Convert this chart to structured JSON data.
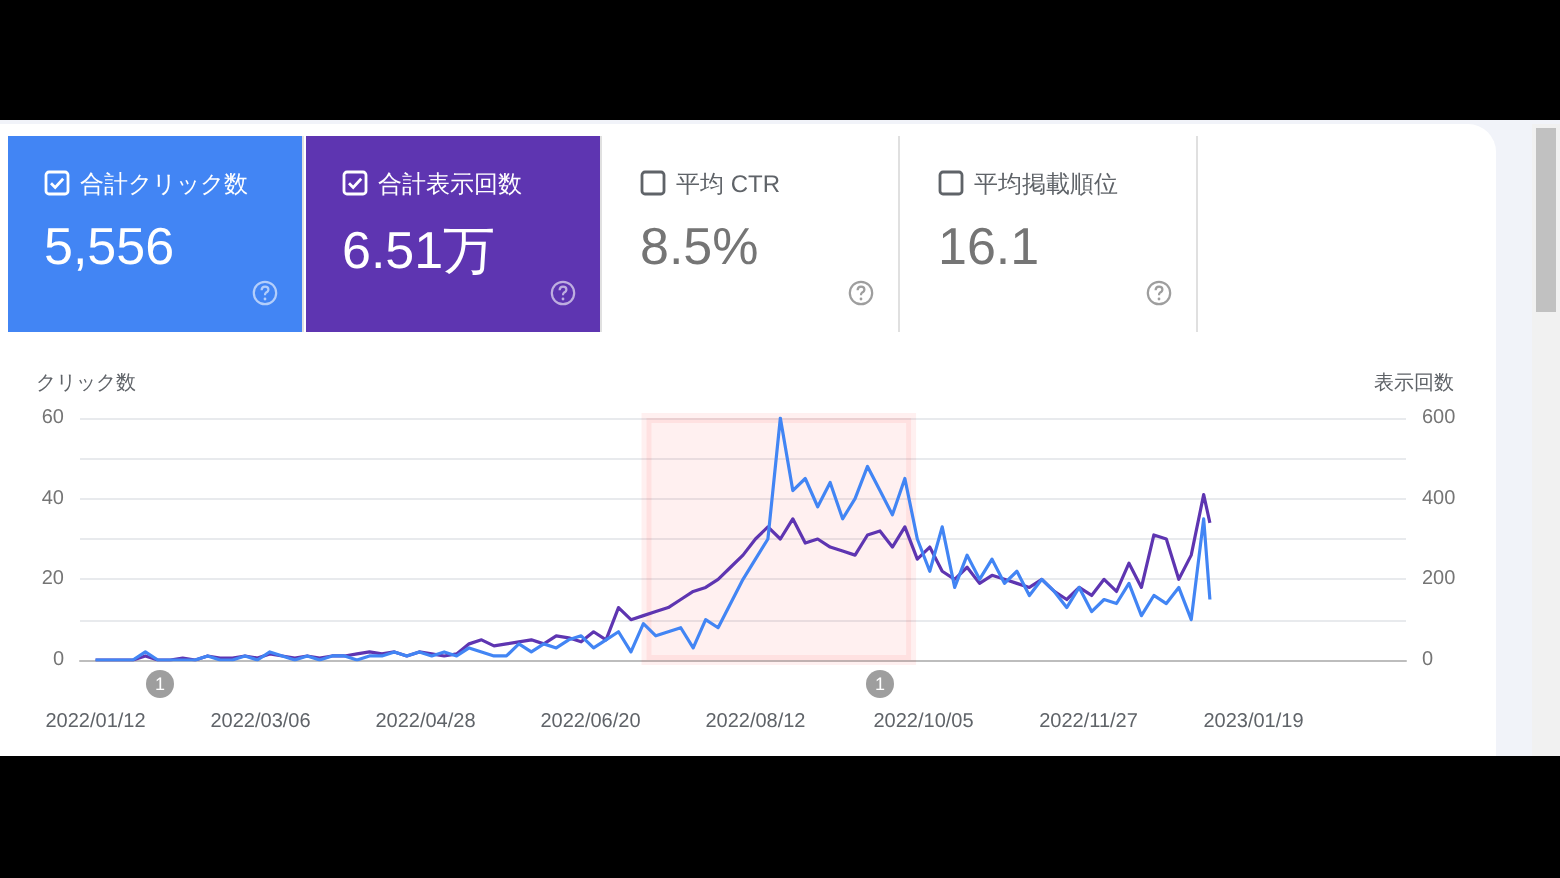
{
  "chart_data": [
    {
      "type": "other",
      "categories": [
        "合計クリック数",
        "合計表示回数",
        "平均 CTR",
        "平均掲載順位"
      ],
      "annotations": [
        "5,556",
        "6.51万",
        "8.5%",
        "16.1"
      ],
      "colors": [
        "#4285f4",
        "#5e35b1",
        null,
        null
      ]
    },
    {
      "type": "line",
      "ylabel": "クリック数",
      "y2label": "表示回数",
      "x": [
        "2022-01-12",
        "2022-01-16",
        "2022-01-20",
        "2022-01-24",
        "2022-01-28",
        "2022-02-01",
        "2022-02-05",
        "2022-02-09",
        "2022-02-13",
        "2022-02-17",
        "2022-02-21",
        "2022-02-25",
        "2022-03-01",
        "2022-03-05",
        "2022-03-09",
        "2022-03-13",
        "2022-03-17",
        "2022-03-21",
        "2022-03-25",
        "2022-03-29",
        "2022-04-02",
        "2022-04-06",
        "2022-04-10",
        "2022-04-14",
        "2022-04-18",
        "2022-04-22",
        "2022-04-26",
        "2022-04-30",
        "2022-05-04",
        "2022-05-08",
        "2022-05-12",
        "2022-05-16",
        "2022-05-20",
        "2022-05-24",
        "2022-05-28",
        "2022-06-01",
        "2022-06-05",
        "2022-06-09",
        "2022-06-13",
        "2022-06-17",
        "2022-06-21",
        "2022-06-25",
        "2022-06-29",
        "2022-07-03",
        "2022-07-07",
        "2022-07-11",
        "2022-07-15",
        "2022-07-19",
        "2022-07-23",
        "2022-07-27",
        "2022-07-31",
        "2022-08-04",
        "2022-08-08",
        "2022-08-12",
        "2022-08-16",
        "2022-08-20",
        "2022-08-24",
        "2022-08-28",
        "2022-09-01",
        "2022-09-05",
        "2022-09-09",
        "2022-09-13",
        "2022-09-17",
        "2022-09-21",
        "2022-09-25",
        "2022-09-29",
        "2022-10-03",
        "2022-10-07",
        "2022-10-11",
        "2022-10-15",
        "2022-10-19",
        "2022-10-23",
        "2022-10-27",
        "2022-10-31",
        "2022-11-04",
        "2022-11-08",
        "2022-11-12",
        "2022-11-16",
        "2022-11-20",
        "2022-11-24",
        "2022-11-28",
        "2022-12-02",
        "2022-12-06",
        "2022-12-10",
        "2022-12-14",
        "2022-12-18",
        "2022-12-22",
        "2022-12-26",
        "2022-12-30",
        "2023-01-03",
        "2023-01-05"
      ],
      "series": [
        {
          "color": "#5e35b1",
          "axis": "y2",
          "values": [
            0,
            0,
            0,
            0,
            10,
            0,
            0,
            5,
            0,
            10,
            5,
            5,
            10,
            5,
            15,
            10,
            5,
            10,
            5,
            10,
            10,
            15,
            20,
            15,
            20,
            10,
            20,
            15,
            10,
            15,
            40,
            50,
            35,
            40,
            45,
            50,
            40,
            60,
            55,
            45,
            70,
            50,
            130,
            100,
            110,
            120,
            130,
            150,
            170,
            180,
            200,
            230,
            260,
            300,
            330,
            300,
            350,
            290,
            300,
            280,
            270,
            260,
            310,
            320,
            280,
            330,
            250,
            280,
            220,
            200,
            230,
            190,
            210,
            200,
            190,
            180,
            200,
            170,
            150,
            180,
            160,
            200,
            170,
            240,
            180,
            310,
            300,
            200,
            260,
            410,
            340
          ]
        },
        {
          "color": "#4285f4",
          "values": [
            0,
            0,
            0,
            0,
            2,
            0,
            0,
            0,
            0,
            1,
            0,
            0,
            1,
            0,
            2,
            1,
            0,
            1,
            0,
            1,
            1,
            0,
            1,
            1,
            2,
            1,
            2,
            1,
            2,
            1,
            3,
            2,
            1,
            1,
            4,
            2,
            4,
            3,
            5,
            6,
            3,
            5,
            7,
            2,
            9,
            6,
            7,
            8,
            3,
            10,
            8,
            14,
            20,
            25,
            30,
            60,
            42,
            45,
            38,
            44,
            35,
            40,
            48,
            42,
            36,
            45,
            30,
            22,
            33,
            18,
            26,
            20,
            25,
            19,
            22,
            16,
            20,
            17,
            13,
            18,
            12,
            15,
            14,
            19,
            11,
            16,
            14,
            18,
            10,
            35,
            15
          ]
        }
      ],
      "xlim": [
        "2022-01-07",
        "2023-03-09"
      ],
      "xticks": [
        {
          "value": "2022-01-12",
          "label": "2022/01/12"
        },
        {
          "value": "2022-03-06",
          "label": "2022/03/06"
        },
        {
          "value": "2022-04-28",
          "label": "2022/04/28"
        },
        {
          "value": "2022-06-20",
          "label": "2022/06/20"
        },
        {
          "value": "2022-08-12",
          "label": "2022/08/12"
        },
        {
          "value": "2022-10-05",
          "label": "2022/10/05"
        },
        {
          "value": "2022-11-27",
          "label": "2022/11/27"
        },
        {
          "value": "2023-01-19",
          "label": "2023/01/19"
        }
      ],
      "ylim": [
        0,
        60
      ],
      "yticks": [
        0,
        20,
        40,
        60
      ],
      "y2lim": [
        0,
        600
      ],
      "y2ticks": [
        0,
        200,
        400,
        600
      ],
      "grid": "y",
      "bands": [
        {
          "axis": "x",
          "from": "2022-07-08",
          "to": "2022-10-01",
          "color": "#ff0000"
        }
      ],
      "annotations": [
        "1",
        "1"
      ]
    }
  ]
}
